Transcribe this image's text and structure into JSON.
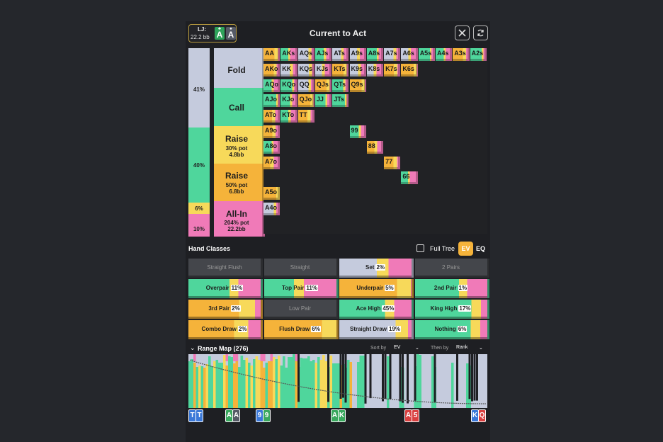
{
  "header": {
    "position": "LJ:",
    "stack": "22.2 bb",
    "hole_cards": [
      {
        "rank": "A",
        "suit": "♣",
        "color": "#2ea35a"
      },
      {
        "rank": "A",
        "suit": "♠",
        "color": "#555a66"
      }
    ],
    "title": "Current to Act",
    "close_icon": "close-icon",
    "refresh_icon": "refresh-icon"
  },
  "strategy_bar": [
    {
      "label": "41%",
      "color": "#c5cbdd"
    },
    {
      "label": "40%",
      "color": "#4fd69c"
    },
    {
      "label": "6%",
      "color": "#f7d95a"
    },
    {
      "label": "10%",
      "color": "#f07ab8"
    }
  ],
  "actions": [
    {
      "name": "Fold",
      "color": "#c5cbdd"
    },
    {
      "name": "Call",
      "color": "#4fd69c"
    },
    {
      "name": "Raise",
      "pct": "30",
      "pct_unit": "% pot",
      "amt": "4.8",
      "amt_unit": "bb",
      "color": "#f7d95a"
    },
    {
      "name": "Raise",
      "pct": "50",
      "pct_unit": "% pot",
      "amt": "6.8",
      "amt_unit": "bb",
      "color": "#f5b33a"
    },
    {
      "name": "All-In",
      "pct": "204",
      "pct_unit": "% pot",
      "amt": "22.2",
      "amt_unit": "bb",
      "color": "#f07ab8"
    }
  ],
  "matrix_labels": {
    "row0": [
      "AA",
      "AKs",
      "AQs",
      "AJs",
      "ATs",
      "A9s",
      "A8s",
      "A7s",
      "A6s",
      "A5s",
      "A4s",
      "A3s",
      "A2s"
    ],
    "row1": [
      "AKo",
      "KK",
      "KQs",
      "KJs",
      "KTs",
      "K9s",
      "K8s",
      "K7s",
      "K6s"
    ],
    "row2": [
      "AQo",
      "KQo",
      "QQ",
      "QJs",
      "QTs",
      "Q9s"
    ],
    "row3": [
      "AJo",
      "KJo",
      "QJo",
      "JJ",
      "JTs"
    ],
    "row4": [
      "ATo",
      "KTo",
      "TT"
    ],
    "col0_extra": [
      "A9o",
      "A8o",
      "A7o",
      "A5o",
      "A4o"
    ],
    "pairs": [
      "99",
      "88",
      "77",
      "66"
    ]
  },
  "hand_classes": {
    "title": "Hand Classes",
    "full_tree": "Full Tree",
    "ev_label": "EV",
    "eq_label": "EQ",
    "items": [
      {
        "name": "Straight Flush",
        "pct": "",
        "disabled": true
      },
      {
        "name": "Straight",
        "pct": "",
        "disabled": true
      },
      {
        "name": "Set",
        "pct": "2%",
        "disabled": false
      },
      {
        "name": "2 Pairs",
        "pct": "",
        "disabled": true
      },
      {
        "name": "Overpair",
        "pct": "11%",
        "disabled": false
      },
      {
        "name": "Top Pair",
        "pct": "11%",
        "disabled": false
      },
      {
        "name": "Underpair",
        "pct": "5%",
        "disabled": false
      },
      {
        "name": "2nd Pair",
        "pct": "1%",
        "disabled": false
      },
      {
        "name": "3rd Pair",
        "pct": "2%",
        "disabled": false
      },
      {
        "name": "Low Pair",
        "pct": "",
        "disabled": true
      },
      {
        "name": "Ace High",
        "pct": "45%",
        "disabled": false
      },
      {
        "name": "King High",
        "pct": "17%",
        "disabled": false
      },
      {
        "name": "Combo Draw",
        "pct": "2%",
        "disabled": false
      },
      {
        "name": "Flush Draw",
        "pct": "6%",
        "disabled": false
      },
      {
        "name": "Straight Draw",
        "pct": "19%",
        "disabled": false
      },
      {
        "name": "Nothing",
        "pct": "6%",
        "disabled": false
      }
    ]
  },
  "range_map": {
    "title": "Range Map (276)",
    "sort_by_label": "Sort by",
    "sort_by_value": "EV",
    "then_by_label": "Then by",
    "then_by_value": "Rank",
    "markers": [
      {
        "r1": "T",
        "r2": "T",
        "c1": "#3a78d8",
        "c2": "#3a78d8"
      },
      {
        "r1": "A",
        "r2": "A",
        "c1": "#3aa85e",
        "c2": "#555a66"
      },
      {
        "r1": "9",
        "r2": "9",
        "c1": "#3a78d8",
        "c2": "#3aa85e"
      },
      {
        "r1": "A",
        "r2": "K",
        "c1": "#3aa85e",
        "c2": "#3aa85e"
      },
      {
        "r1": "A",
        "r2": "5",
        "c1": "#d94040",
        "c2": "#d94040"
      },
      {
        "r1": "K",
        "r2": "Q",
        "c1": "#3a78d8",
        "c2": "#d94040"
      }
    ]
  },
  "colors": {
    "fold": "#c5cbdd",
    "call": "#4fd69c",
    "raise_small": "#f7d95a",
    "raise_big": "#f5b33a",
    "allin": "#f07ab8"
  }
}
